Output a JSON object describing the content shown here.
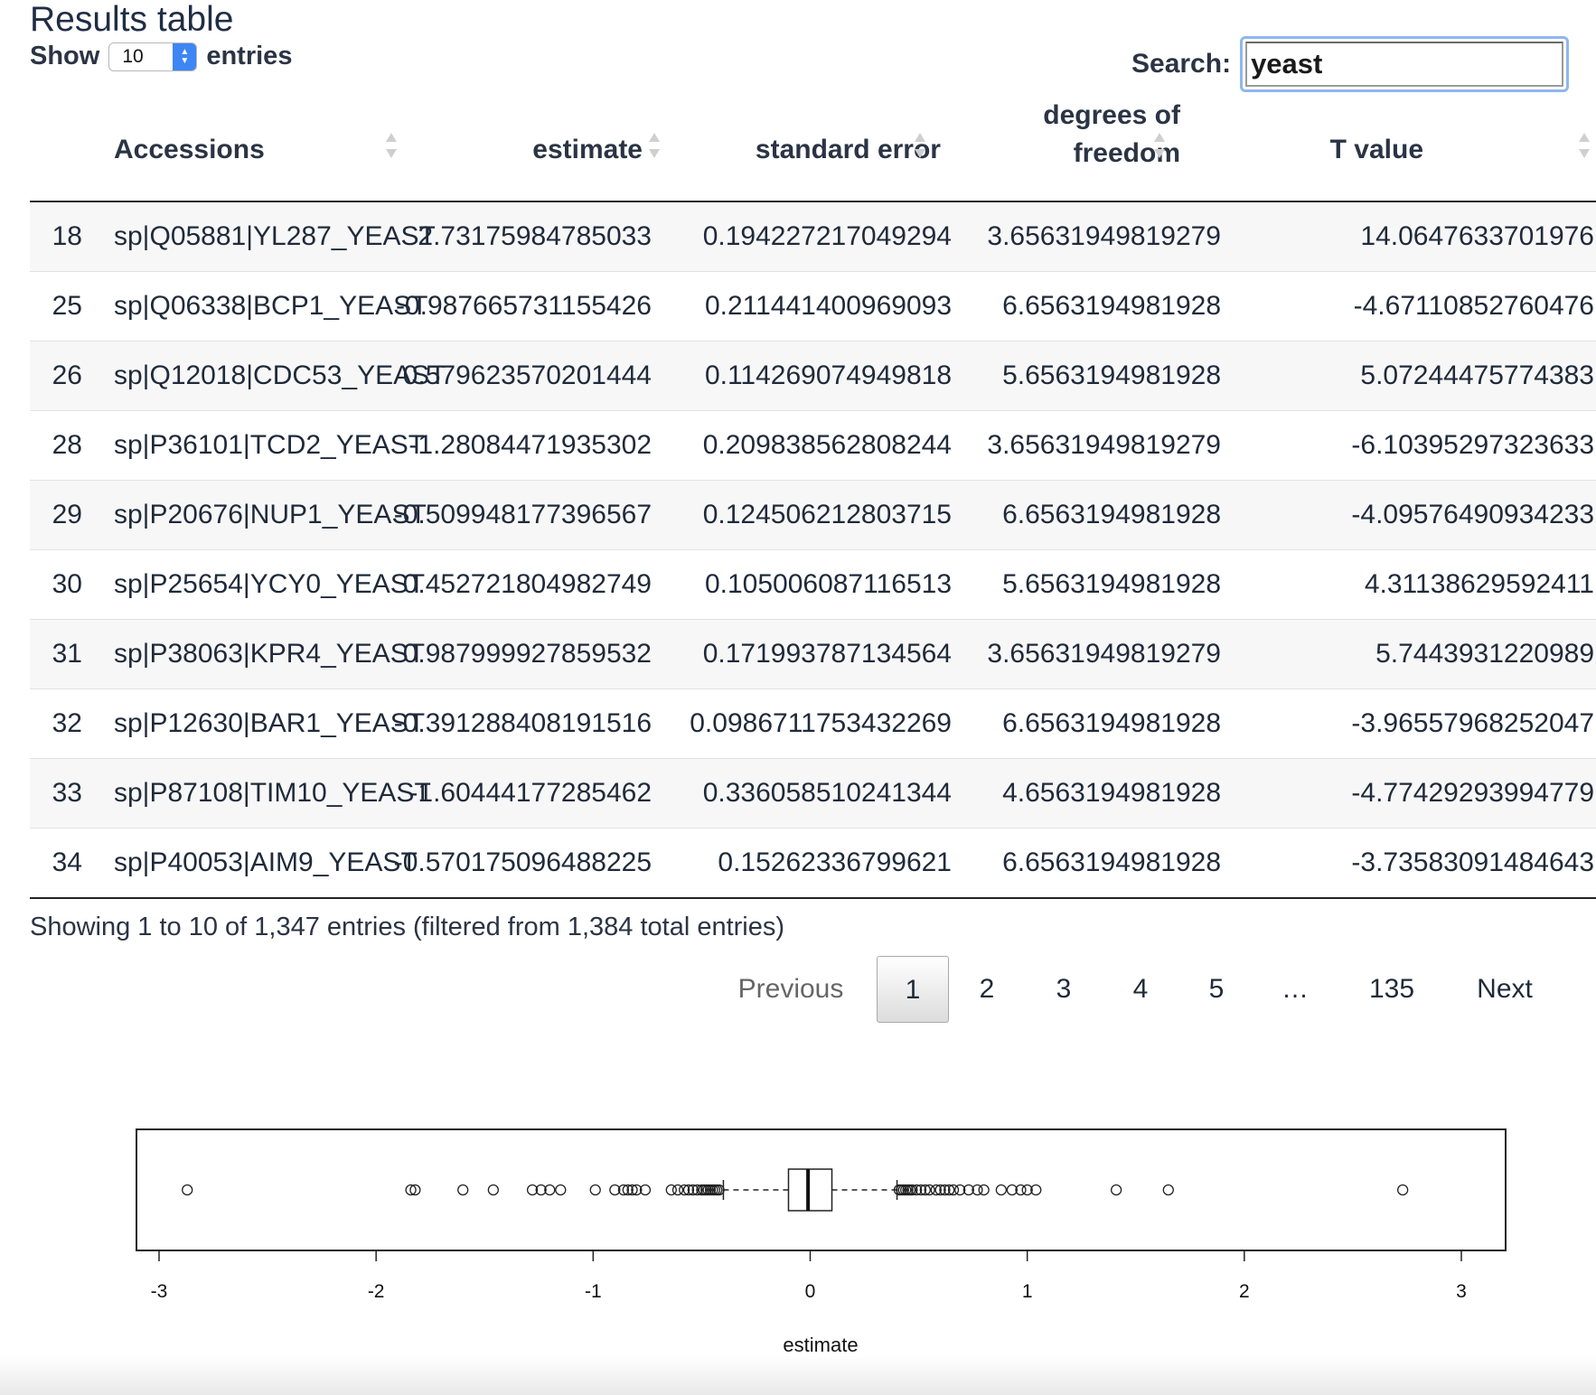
{
  "header": {
    "title": "Results table"
  },
  "length": {
    "show_label": "Show",
    "value": "10",
    "entries_label": "entries"
  },
  "search": {
    "label": "Search:",
    "value": "yeast"
  },
  "table": {
    "columns": {
      "accessions": "Accessions",
      "estimate": "estimate",
      "std_error": "standard error",
      "df_line1": "degrees of",
      "df_line2": "freedom",
      "t_value": "T value"
    },
    "rows": [
      [
        "18",
        "sp|Q05881|YL287_YEAST",
        "2.73175984785033",
        "0.194227217049294",
        "3.65631949819279",
        "14.0647633701976"
      ],
      [
        "25",
        "sp|Q06338|BCP1_YEAST",
        "-0.987665731155426",
        "0.211441400969093",
        "6.6563194981928",
        "-4.67110852760476"
      ],
      [
        "26",
        "sp|Q12018|CDC53_YEAST",
        "0.579623570201444",
        "0.114269074949818",
        "5.6563194981928",
        "5.07244475774383"
      ],
      [
        "28",
        "sp|P36101|TCD2_YEAST",
        "-1.28084471935302",
        "0.209838562808244",
        "3.65631949819279",
        "-6.10395297323633"
      ],
      [
        "29",
        "sp|P20676|NUP1_YEAST",
        "-0.509948177396567",
        "0.124506212803715",
        "6.6563194981928",
        "-4.09576490934233"
      ],
      [
        "30",
        "sp|P25654|YCY0_YEAST",
        "0.452721804982749",
        "0.105006087116513",
        "5.6563194981928",
        "4.31138629592411"
      ],
      [
        "31",
        "sp|P38063|KPR4_YEAST",
        "0.987999927859532",
        "0.171993787134564",
        "3.65631949819279",
        "5.7443931220989"
      ],
      [
        "32",
        "sp|P12630|BAR1_YEAST",
        "-0.391288408191516",
        "0.0986711753432269",
        "6.6563194981928",
        "-3.96557968252047"
      ],
      [
        "33",
        "sp|P87108|TIM10_YEAST",
        "-1.60444177285462",
        "0.336058510241344",
        "4.6563194981928",
        "-4.77429293994779"
      ],
      [
        "34",
        "sp|P40053|AIM9_YEAST",
        "-0.570175096488225",
        "0.15262336799621",
        "6.6563194981928",
        "-3.73583091484643"
      ]
    ]
  },
  "info": {
    "text": "Showing 1 to 10 of 1,347 entries (filtered from 1,384 total entries)"
  },
  "pagination": {
    "previous": "Previous",
    "pages": [
      "1",
      "2",
      "3",
      "4",
      "5",
      "…",
      "135"
    ],
    "current": "1",
    "next": "Next"
  },
  "chart_data": {
    "type": "boxplot",
    "orientation": "horizontal",
    "xlabel": "estimate",
    "xlim": [
      -3.1,
      3.2
    ],
    "ticks": [
      -3,
      -2,
      -1,
      0,
      1,
      2,
      3
    ],
    "tick_labels": [
      "-3",
      "-2",
      "-1",
      "0",
      "1",
      "2",
      "3"
    ],
    "box": {
      "q1": -0.1,
      "median": -0.01,
      "q3": 0.1,
      "whisker_low": -0.4,
      "whisker_high": 0.4
    },
    "outliers": [
      -2.87,
      -1.84,
      -1.82,
      -1.6,
      -1.46,
      -1.28,
      -1.24,
      -1.2,
      -1.15,
      -0.99,
      -0.9,
      -0.86,
      -0.84,
      -0.82,
      -0.8,
      -0.76,
      -0.64,
      -0.61,
      -0.58,
      -0.56,
      -0.54,
      -0.52,
      -0.5,
      -0.49,
      -0.48,
      -0.47,
      -0.46,
      -0.45,
      -0.44,
      -0.43,
      -0.42,
      0.41,
      0.42,
      0.43,
      0.44,
      0.45,
      0.46,
      0.47,
      0.49,
      0.51,
      0.53,
      0.55,
      0.58,
      0.6,
      0.62,
      0.64,
      0.66,
      0.69,
      0.73,
      0.77,
      0.8,
      0.88,
      0.93,
      0.97,
      1.0,
      1.04,
      1.41,
      1.65,
      2.73
    ]
  }
}
